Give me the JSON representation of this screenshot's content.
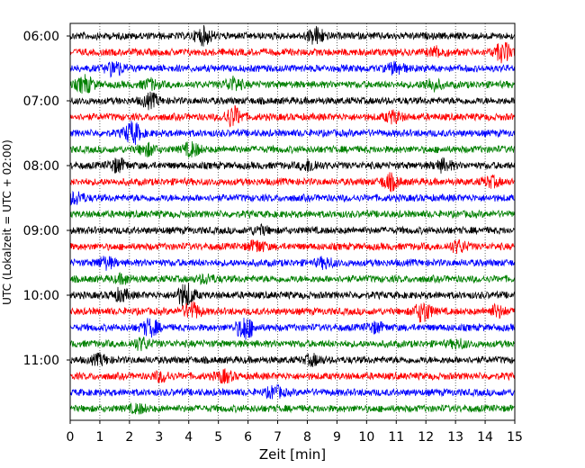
{
  "chart_data": {
    "type": "line",
    "title": "",
    "xlabel": "Zeit  [min]",
    "ylabel": "UTC (Lokalzeit = UTC + 02:00)",
    "xlim": [
      0,
      15
    ],
    "x_ticks": [
      "0",
      "1",
      "2",
      "3",
      "4",
      "5",
      "6",
      "7",
      "8",
      "9",
      "10",
      "11",
      "12",
      "13",
      "14",
      "15"
    ],
    "y_tick_labels": [
      "06:00",
      "07:00",
      "08:00",
      "09:00",
      "10:00",
      "11:00"
    ],
    "grid": {
      "x": true,
      "y": false
    },
    "traces_per_hour": 4,
    "trace_colors": [
      "#000000",
      "#ff0000",
      "#0000ff",
      "#008000"
    ],
    "traces": [
      {
        "start": "06:00",
        "events": [
          [
            4.5,
            0.9
          ],
          [
            8.3,
            0.9
          ]
        ]
      },
      {
        "start": "06:15",
        "events": [
          [
            14.6,
            1.0
          ],
          [
            12.4,
            0.5
          ]
        ]
      },
      {
        "start": "06:30",
        "events": [
          [
            1.5,
            0.8
          ],
          [
            11.0,
            0.6
          ]
        ]
      },
      {
        "start": "06:45",
        "events": [
          [
            0.5,
            0.9
          ],
          [
            5.5,
            0.7
          ],
          [
            12.2,
            0.6
          ],
          [
            2.7,
            0.5
          ]
        ]
      },
      {
        "start": "07:00",
        "events": [
          [
            2.7,
            0.7
          ]
        ]
      },
      {
        "start": "07:15",
        "events": [
          [
            5.5,
            1.1
          ],
          [
            10.9,
            0.6
          ]
        ]
      },
      {
        "start": "07:30",
        "events": [
          [
            2.1,
            1.2
          ]
        ]
      },
      {
        "start": "07:45",
        "events": [
          [
            2.6,
            0.6
          ],
          [
            4.1,
            0.7
          ]
        ]
      },
      {
        "start": "08:00",
        "events": [
          [
            1.6,
            0.7
          ],
          [
            8.1,
            0.6
          ],
          [
            12.6,
            0.6
          ]
        ]
      },
      {
        "start": "08:15",
        "events": [
          [
            10.8,
            0.8
          ],
          [
            14.2,
            0.5
          ]
        ]
      },
      {
        "start": "08:30",
        "events": [
          [
            0.2,
            0.6
          ]
        ]
      },
      {
        "start": "08:45",
        "events": []
      },
      {
        "start": "09:00",
        "events": [
          [
            6.4,
            0.4
          ]
        ]
      },
      {
        "start": "09:15",
        "events": [
          [
            6.3,
            0.6
          ],
          [
            13.1,
            0.6
          ]
        ]
      },
      {
        "start": "09:30",
        "events": [
          [
            1.2,
            0.6
          ],
          [
            8.6,
            0.5
          ]
        ]
      },
      {
        "start": "09:45",
        "events": [
          [
            1.8,
            0.4
          ],
          [
            4.6,
            0.4
          ]
        ]
      },
      {
        "start": "10:00",
        "events": [
          [
            3.9,
            1.3
          ],
          [
            1.7,
            0.6
          ]
        ]
      },
      {
        "start": "10:15",
        "events": [
          [
            11.9,
            1.1
          ],
          [
            4.1,
            0.9
          ],
          [
            14.4,
            0.6
          ]
        ]
      },
      {
        "start": "10:30",
        "events": [
          [
            5.9,
            1.3
          ],
          [
            2.7,
            0.9
          ],
          [
            10.3,
            0.5
          ]
        ]
      },
      {
        "start": "10:45",
        "events": [
          [
            2.4,
            0.6
          ],
          [
            13.1,
            0.4
          ]
        ]
      },
      {
        "start": "11:00",
        "events": [
          [
            1.0,
            0.5
          ],
          [
            8.2,
            0.5
          ]
        ]
      },
      {
        "start": "11:15",
        "events": [
          [
            5.2,
            0.6
          ],
          [
            3.1,
            0.5
          ]
        ]
      },
      {
        "start": "11:30",
        "events": [
          [
            6.9,
            0.6
          ]
        ]
      },
      {
        "start": "11:45",
        "events": [
          [
            2.3,
            0.4
          ]
        ]
      }
    ]
  }
}
